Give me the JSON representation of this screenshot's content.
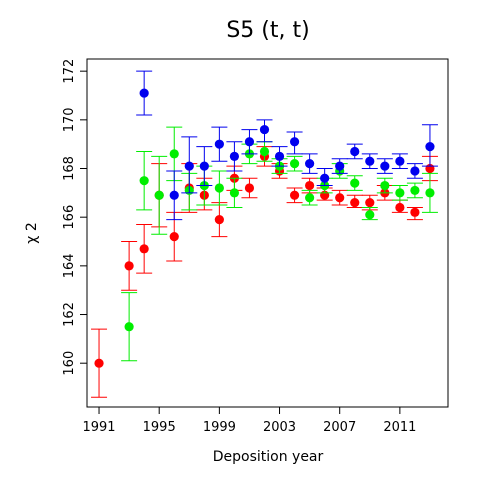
{
  "chart_data": {
    "type": "scatter",
    "title": "S5  (t, t)",
    "xlabel": "Deposition year",
    "ylabel": "χ 2",
    "xlim": [
      1990.2,
      2014.2
    ],
    "ylim": [
      158.2,
      172.5
    ],
    "x_ticks": [
      1991,
      1995,
      1999,
      2003,
      2007,
      2011
    ],
    "y_ticks": [
      160,
      162,
      164,
      166,
      168,
      170,
      172
    ],
    "grid": false,
    "legend": "none",
    "series": [
      {
        "color": "#ff0000",
        "points": [
          {
            "x": 1991,
            "y": 160.0,
            "lo": 158.6,
            "hi": 161.4
          },
          {
            "x": 1993,
            "y": 164.0,
            "lo": 163.0,
            "hi": 165.0
          },
          {
            "x": 1994,
            "y": 164.7,
            "lo": 163.7,
            "hi": 165.7
          },
          {
            "x": 1995,
            "y": 166.9,
            "lo": 165.6,
            "hi": 168.2
          },
          {
            "x": 1996,
            "y": 165.2,
            "lo": 164.2,
            "hi": 166.2
          },
          {
            "x": 1997,
            "y": 167.2,
            "lo": 166.2,
            "hi": 168.2
          },
          {
            "x": 1998,
            "y": 166.9,
            "lo": 166.3,
            "hi": 167.6
          },
          {
            "x": 1999,
            "y": 165.9,
            "lo": 165.2,
            "hi": 166.6
          },
          {
            "x": 2000,
            "y": 167.6,
            "lo": 167.1,
            "hi": 168.1
          },
          {
            "x": 2001,
            "y": 167.2,
            "lo": 166.8,
            "hi": 167.6
          },
          {
            "x": 2002,
            "y": 168.5,
            "lo": 168.1,
            "hi": 168.9
          },
          {
            "x": 2003,
            "y": 167.9,
            "lo": 167.6,
            "hi": 168.2
          },
          {
            "x": 2004,
            "y": 166.9,
            "lo": 166.6,
            "hi": 167.2
          },
          {
            "x": 2005,
            "y": 167.3,
            "lo": 167.0,
            "hi": 167.6
          },
          {
            "x": 2006,
            "y": 166.9,
            "lo": 166.7,
            "hi": 167.2
          },
          {
            "x": 2007,
            "y": 166.8,
            "lo": 166.5,
            "hi": 167.1
          },
          {
            "x": 2008,
            "y": 166.6,
            "lo": 166.4,
            "hi": 166.9
          },
          {
            "x": 2009,
            "y": 166.6,
            "lo": 166.3,
            "hi": 166.9
          },
          {
            "x": 2010,
            "y": 167.0,
            "lo": 166.7,
            "hi": 167.3
          },
          {
            "x": 2011,
            "y": 166.4,
            "lo": 166.2,
            "hi": 166.7
          },
          {
            "x": 2012,
            "y": 166.2,
            "lo": 165.9,
            "hi": 166.4
          },
          {
            "x": 2013,
            "y": 168.0,
            "lo": 167.5,
            "hi": 168.5
          }
        ]
      },
      {
        "color": "#00ee00",
        "points": [
          {
            "x": 1993,
            "y": 161.5,
            "lo": 160.1,
            "hi": 162.9
          },
          {
            "x": 1994,
            "y": 167.5,
            "lo": 166.3,
            "hi": 168.7
          },
          {
            "x": 1995,
            "y": 166.9,
            "lo": 165.3,
            "hi": 168.5
          },
          {
            "x": 1996,
            "y": 168.6,
            "lo": 167.5,
            "hi": 169.7
          },
          {
            "x": 1997,
            "y": 167.1,
            "lo": 166.3,
            "hi": 167.8
          },
          {
            "x": 1998,
            "y": 167.3,
            "lo": 166.5,
            "hi": 168.1
          },
          {
            "x": 1999,
            "y": 167.2,
            "lo": 166.5,
            "hi": 167.9
          },
          {
            "x": 2000,
            "y": 167.0,
            "lo": 166.4,
            "hi": 167.6
          },
          {
            "x": 2001,
            "y": 168.6,
            "lo": 168.2,
            "hi": 169.0
          },
          {
            "x": 2002,
            "y": 168.7,
            "lo": 168.3,
            "hi": 169.1
          },
          {
            "x": 2003,
            "y": 168.1,
            "lo": 167.8,
            "hi": 168.4
          },
          {
            "x": 2004,
            "y": 168.2,
            "lo": 167.9,
            "hi": 168.5
          },
          {
            "x": 2005,
            "y": 166.8,
            "lo": 166.5,
            "hi": 167.1
          },
          {
            "x": 2006,
            "y": 167.3,
            "lo": 167.0,
            "hi": 167.6
          },
          {
            "x": 2007,
            "y": 167.9,
            "lo": 167.6,
            "hi": 168.2
          },
          {
            "x": 2008,
            "y": 167.4,
            "lo": 167.1,
            "hi": 167.7
          },
          {
            "x": 2009,
            "y": 166.1,
            "lo": 165.9,
            "hi": 166.4
          },
          {
            "x": 2010,
            "y": 167.3,
            "lo": 167.0,
            "hi": 167.6
          },
          {
            "x": 2011,
            "y": 167.0,
            "lo": 166.7,
            "hi": 167.3
          },
          {
            "x": 2012,
            "y": 167.1,
            "lo": 166.8,
            "hi": 167.4
          },
          {
            "x": 2013,
            "y": 167.0,
            "lo": 166.2,
            "hi": 167.8
          }
        ]
      },
      {
        "color": "#0000ee",
        "points": [
          {
            "x": 1994,
            "y": 171.1,
            "lo": 170.2,
            "hi": 172.0
          },
          {
            "x": 1996,
            "y": 166.9,
            "lo": 165.9,
            "hi": 167.9
          },
          {
            "x": 1997,
            "y": 168.1,
            "lo": 167.0,
            "hi": 169.3
          },
          {
            "x": 1998,
            "y": 168.1,
            "lo": 167.3,
            "hi": 168.9
          },
          {
            "x": 1999,
            "y": 169.0,
            "lo": 168.3,
            "hi": 169.7
          },
          {
            "x": 2000,
            "y": 168.5,
            "lo": 167.9,
            "hi": 169.1
          },
          {
            "x": 2001,
            "y": 169.1,
            "lo": 168.6,
            "hi": 169.6
          },
          {
            "x": 2002,
            "y": 169.6,
            "lo": 169.1,
            "hi": 170.0
          },
          {
            "x": 2003,
            "y": 168.5,
            "lo": 168.1,
            "hi": 168.9
          },
          {
            "x": 2004,
            "y": 169.1,
            "lo": 168.6,
            "hi": 169.5
          },
          {
            "x": 2005,
            "y": 168.2,
            "lo": 167.8,
            "hi": 168.6
          },
          {
            "x": 2006,
            "y": 167.6,
            "lo": 167.3,
            "hi": 168.0
          },
          {
            "x": 2007,
            "y": 168.1,
            "lo": 167.8,
            "hi": 168.4
          },
          {
            "x": 2008,
            "y": 168.7,
            "lo": 168.4,
            "hi": 169.0
          },
          {
            "x": 2009,
            "y": 168.3,
            "lo": 168.0,
            "hi": 168.6
          },
          {
            "x": 2010,
            "y": 168.1,
            "lo": 167.8,
            "hi": 168.4
          },
          {
            "x": 2011,
            "y": 168.3,
            "lo": 168.0,
            "hi": 168.6
          },
          {
            "x": 2012,
            "y": 167.9,
            "lo": 167.6,
            "hi": 168.2
          },
          {
            "x": 2013,
            "y": 168.9,
            "lo": 168.1,
            "hi": 169.8
          }
        ]
      }
    ]
  }
}
